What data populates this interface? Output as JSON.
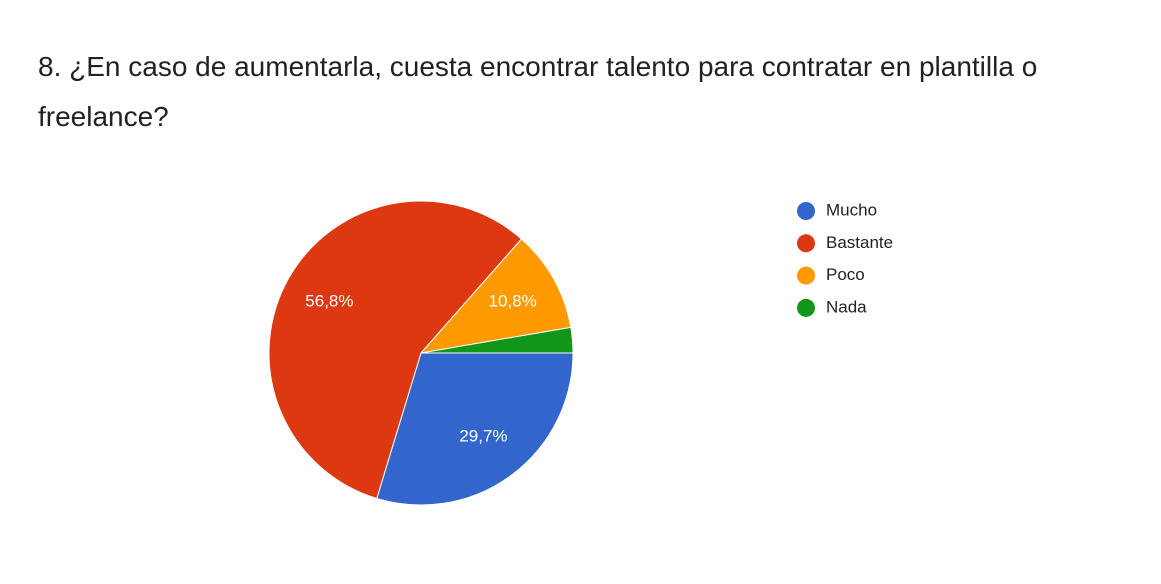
{
  "chart_data": {
    "type": "pie",
    "title": "8. ¿En caso de aumentarla, cuesta encontrar talento para contratar en plantilla o freelance?",
    "categories": [
      "Mucho",
      "Bastante",
      "Poco",
      "Nada"
    ],
    "values": [
      29.7,
      56.8,
      10.8,
      2.7
    ],
    "value_labels": [
      "29,7%",
      "56,8%",
      "10,8%",
      null
    ],
    "colors": [
      "#3366cc",
      "#dc3912",
      "#ff9900",
      "#109618"
    ],
    "legend": "right"
  }
}
